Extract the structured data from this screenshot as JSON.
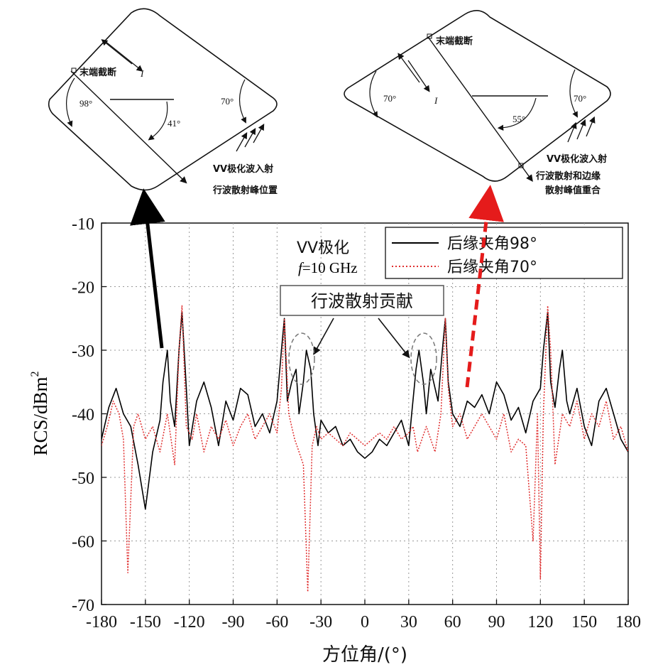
{
  "chart_data": {
    "type": "line",
    "xlabel": "方位角/(°)",
    "ylabel": "RCS/dBm",
    "ylabel_sup": "2",
    "xlim": [
      -180,
      180
    ],
    "ylim": [
      -70,
      -10
    ],
    "xticks": [
      "-180",
      "-150",
      "-120",
      "-90",
      "-60",
      "-30",
      "0",
      "30",
      "60",
      "90",
      "120",
      "150",
      "180"
    ],
    "yticks": [
      "-10",
      "-20",
      "-30",
      "-40",
      "-50",
      "-60",
      "-70"
    ],
    "grid": true,
    "legend_position": "top-right",
    "annotations": {
      "polarization": "VV极化",
      "frequency_f": "f",
      "frequency_value": "=10 GHz",
      "contribution_box": "行波散射贡献"
    },
    "series": [
      {
        "name": "后缘夹角98°",
        "color": "#000000",
        "style": "solid",
        "x": [
          -180,
          -175,
          -170,
          -165,
          -160,
          -155,
          -150,
          -145,
          -140,
          -138,
          -135,
          -133,
          -130,
          -127,
          -125,
          -122,
          -120,
          -115,
          -110,
          -105,
          -100,
          -95,
          -90,
          -85,
          -80,
          -75,
          -70,
          -65,
          -60,
          -57,
          -55,
          -53,
          -50,
          -47,
          -45,
          -42,
          -40,
          -37,
          -35,
          -32,
          -30,
          -25,
          -20,
          -15,
          -10,
          -5,
          0,
          5,
          10,
          15,
          20,
          25,
          30,
          32,
          35,
          37,
          40,
          42,
          45,
          47,
          50,
          53,
          55,
          57,
          60,
          65,
          70,
          75,
          80,
          85,
          90,
          95,
          100,
          105,
          110,
          115,
          120,
          122,
          125,
          127,
          130,
          133,
          135,
          138,
          140,
          145,
          150,
          155,
          160,
          165,
          170,
          175,
          180
        ],
        "y": [
          -44,
          -39,
          -36,
          -40,
          -42,
          -48,
          -55,
          -46,
          -41,
          -35,
          -30,
          -38,
          -42,
          -30,
          -24,
          -36,
          -45,
          -38,
          -35,
          -39,
          -45,
          -38,
          -41,
          -36,
          -37,
          -42,
          -40,
          -43,
          -38,
          -30,
          -25,
          -38,
          -35,
          -33,
          -40,
          -35,
          -30,
          -33,
          -40,
          -45,
          -41,
          -43,
          -42,
          -45,
          -44,
          -46,
          -47,
          -46,
          -44,
          -45,
          -43,
          -41,
          -45,
          -40,
          -33,
          -30,
          -35,
          -40,
          -33,
          -35,
          -38,
          -30,
          -25,
          -35,
          -40,
          -42,
          -38,
          -39,
          -37,
          -40,
          -35,
          -37,
          -41,
          -39,
          -43,
          -38,
          -36,
          -30,
          -24,
          -35,
          -39,
          -33,
          -30,
          -38,
          -40,
          -36,
          -42,
          -45,
          -38,
          -36,
          -40,
          -44,
          -46
        ]
      },
      {
        "name": "后缘夹角70°",
        "color": "#e03030",
        "style": "dotted",
        "x": [
          -180,
          -176,
          -172,
          -168,
          -165,
          -162,
          -158,
          -155,
          -150,
          -145,
          -140,
          -135,
          -130,
          -127,
          -125,
          -122,
          -118,
          -115,
          -110,
          -105,
          -100,
          -95,
          -90,
          -85,
          -80,
          -75,
          -70,
          -65,
          -60,
          -57,
          -55,
          -52,
          -48,
          -45,
          -42,
          -39,
          -36,
          -33,
          -30,
          -25,
          -20,
          -15,
          -10,
          -5,
          0,
          5,
          10,
          15,
          20,
          25,
          30,
          33,
          36,
          39,
          42,
          45,
          48,
          52,
          55,
          57,
          60,
          65,
          70,
          75,
          80,
          85,
          90,
          95,
          100,
          105,
          110,
          115,
          118,
          120,
          122,
          125,
          127,
          130,
          135,
          140,
          145,
          150,
          155,
          160,
          165,
          170,
          175,
          180
        ],
        "y": [
          -45,
          -42,
          -38,
          -40,
          -44,
          -65,
          -42,
          -40,
          -44,
          -42,
          -46,
          -40,
          -48,
          -30,
          -23,
          -42,
          -44,
          -40,
          -46,
          -42,
          -44,
          -41,
          -45,
          -42,
          -40,
          -44,
          -42,
          -40,
          -43,
          -36,
          -25,
          -40,
          -44,
          -46,
          -48,
          -68,
          -45,
          -42,
          -44,
          -43,
          -44,
          -45,
          -43,
          -44,
          -45,
          -44,
          -43,
          -44,
          -42,
          -44,
          -43,
          -42,
          -46,
          -44,
          -42,
          -44,
          -46,
          -40,
          -25,
          -36,
          -42,
          -40,
          -44,
          -42,
          -40,
          -42,
          -44,
          -40,
          -46,
          -44,
          -45,
          -60,
          -40,
          -66,
          -40,
          -23,
          -30,
          -48,
          -40,
          -42,
          -38,
          -44,
          -40,
          -42,
          -38,
          -44,
          -42,
          -46
        ]
      }
    ]
  },
  "diagram_left": {
    "truncation_label": "末端截断",
    "current_label": "I",
    "angle_top": "98°",
    "angle_right": "70°",
    "angle_mid": "41°",
    "incidence_label": "VV极化波入射",
    "peak_label": "行波散射峰位置"
  },
  "diagram_right": {
    "truncation_label": "末端截断",
    "current_label": "I",
    "angle_left": "70°",
    "angle_right": "70°",
    "angle_mid": "55°",
    "incidence_label": "VV极化波入射",
    "peak_label_line1": "行波散射和边缘",
    "peak_label_line2": "散射峰值重合"
  },
  "colors": {
    "series_black": "#000000",
    "series_red": "#e03030",
    "arrow_black": "#000000",
    "arrow_red": "#e51b1b"
  }
}
